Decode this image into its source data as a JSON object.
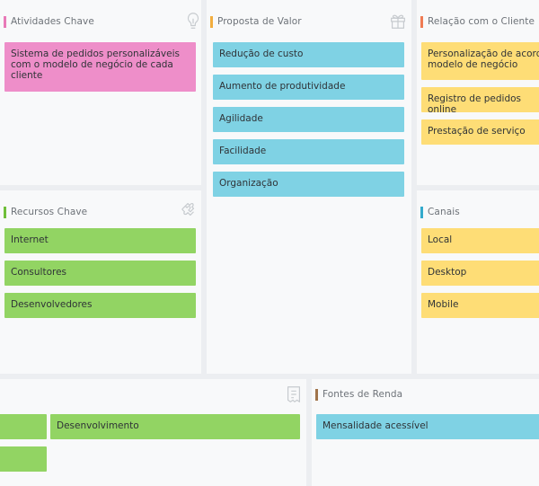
{
  "colors": {
    "background": "#eceef1",
    "panel": "#f8f9fa",
    "pink_note": "#ee8ec9",
    "blue_note": "#7fd2e4",
    "yellow_note": "#fedd76",
    "green_note": "#92d463",
    "bar_atividades": "#e87ab8",
    "bar_proposta": "#f2ad3e",
    "bar_relacao": "#ef7b53",
    "bar_recursos": "#6fbf3a",
    "bar_canais": "#33aacc",
    "bar_fontes": "#a0744b"
  },
  "atividades": {
    "title": "Atividades Chave",
    "icon": "lightbulb-icon",
    "notes": [
      "Sistema de pedidos personalizáveis\ncom o modelo de negócio de cada\ncliente"
    ]
  },
  "proposta": {
    "title": "Proposta de Valor",
    "icon": "gift-icon",
    "notes": [
      "Redução de custo",
      "Aumento de produtividade",
      "Agilidade",
      "Facilidade",
      "Organização"
    ]
  },
  "relacao": {
    "title": "Relação com o Cliente",
    "notes": [
      "Personalização de acordo\nmodelo de negócio",
      "Registro de pedidos online",
      "Prestação de serviço"
    ]
  },
  "recursos": {
    "title": "Recursos Chave",
    "icon": "puzzle-icon",
    "notes": [
      "Internet",
      "Consultores",
      "Desenvolvedores"
    ]
  },
  "canais": {
    "title": "Canais",
    "notes": [
      "Local",
      "Desktop",
      "Mobile"
    ]
  },
  "custos": {
    "icon": "receipt-icon",
    "notes": [
      "",
      "Desenvolvimento",
      ""
    ]
  },
  "fontes": {
    "title": "Fontes de Renda",
    "notes": [
      "Mensalidade acessível"
    ]
  }
}
